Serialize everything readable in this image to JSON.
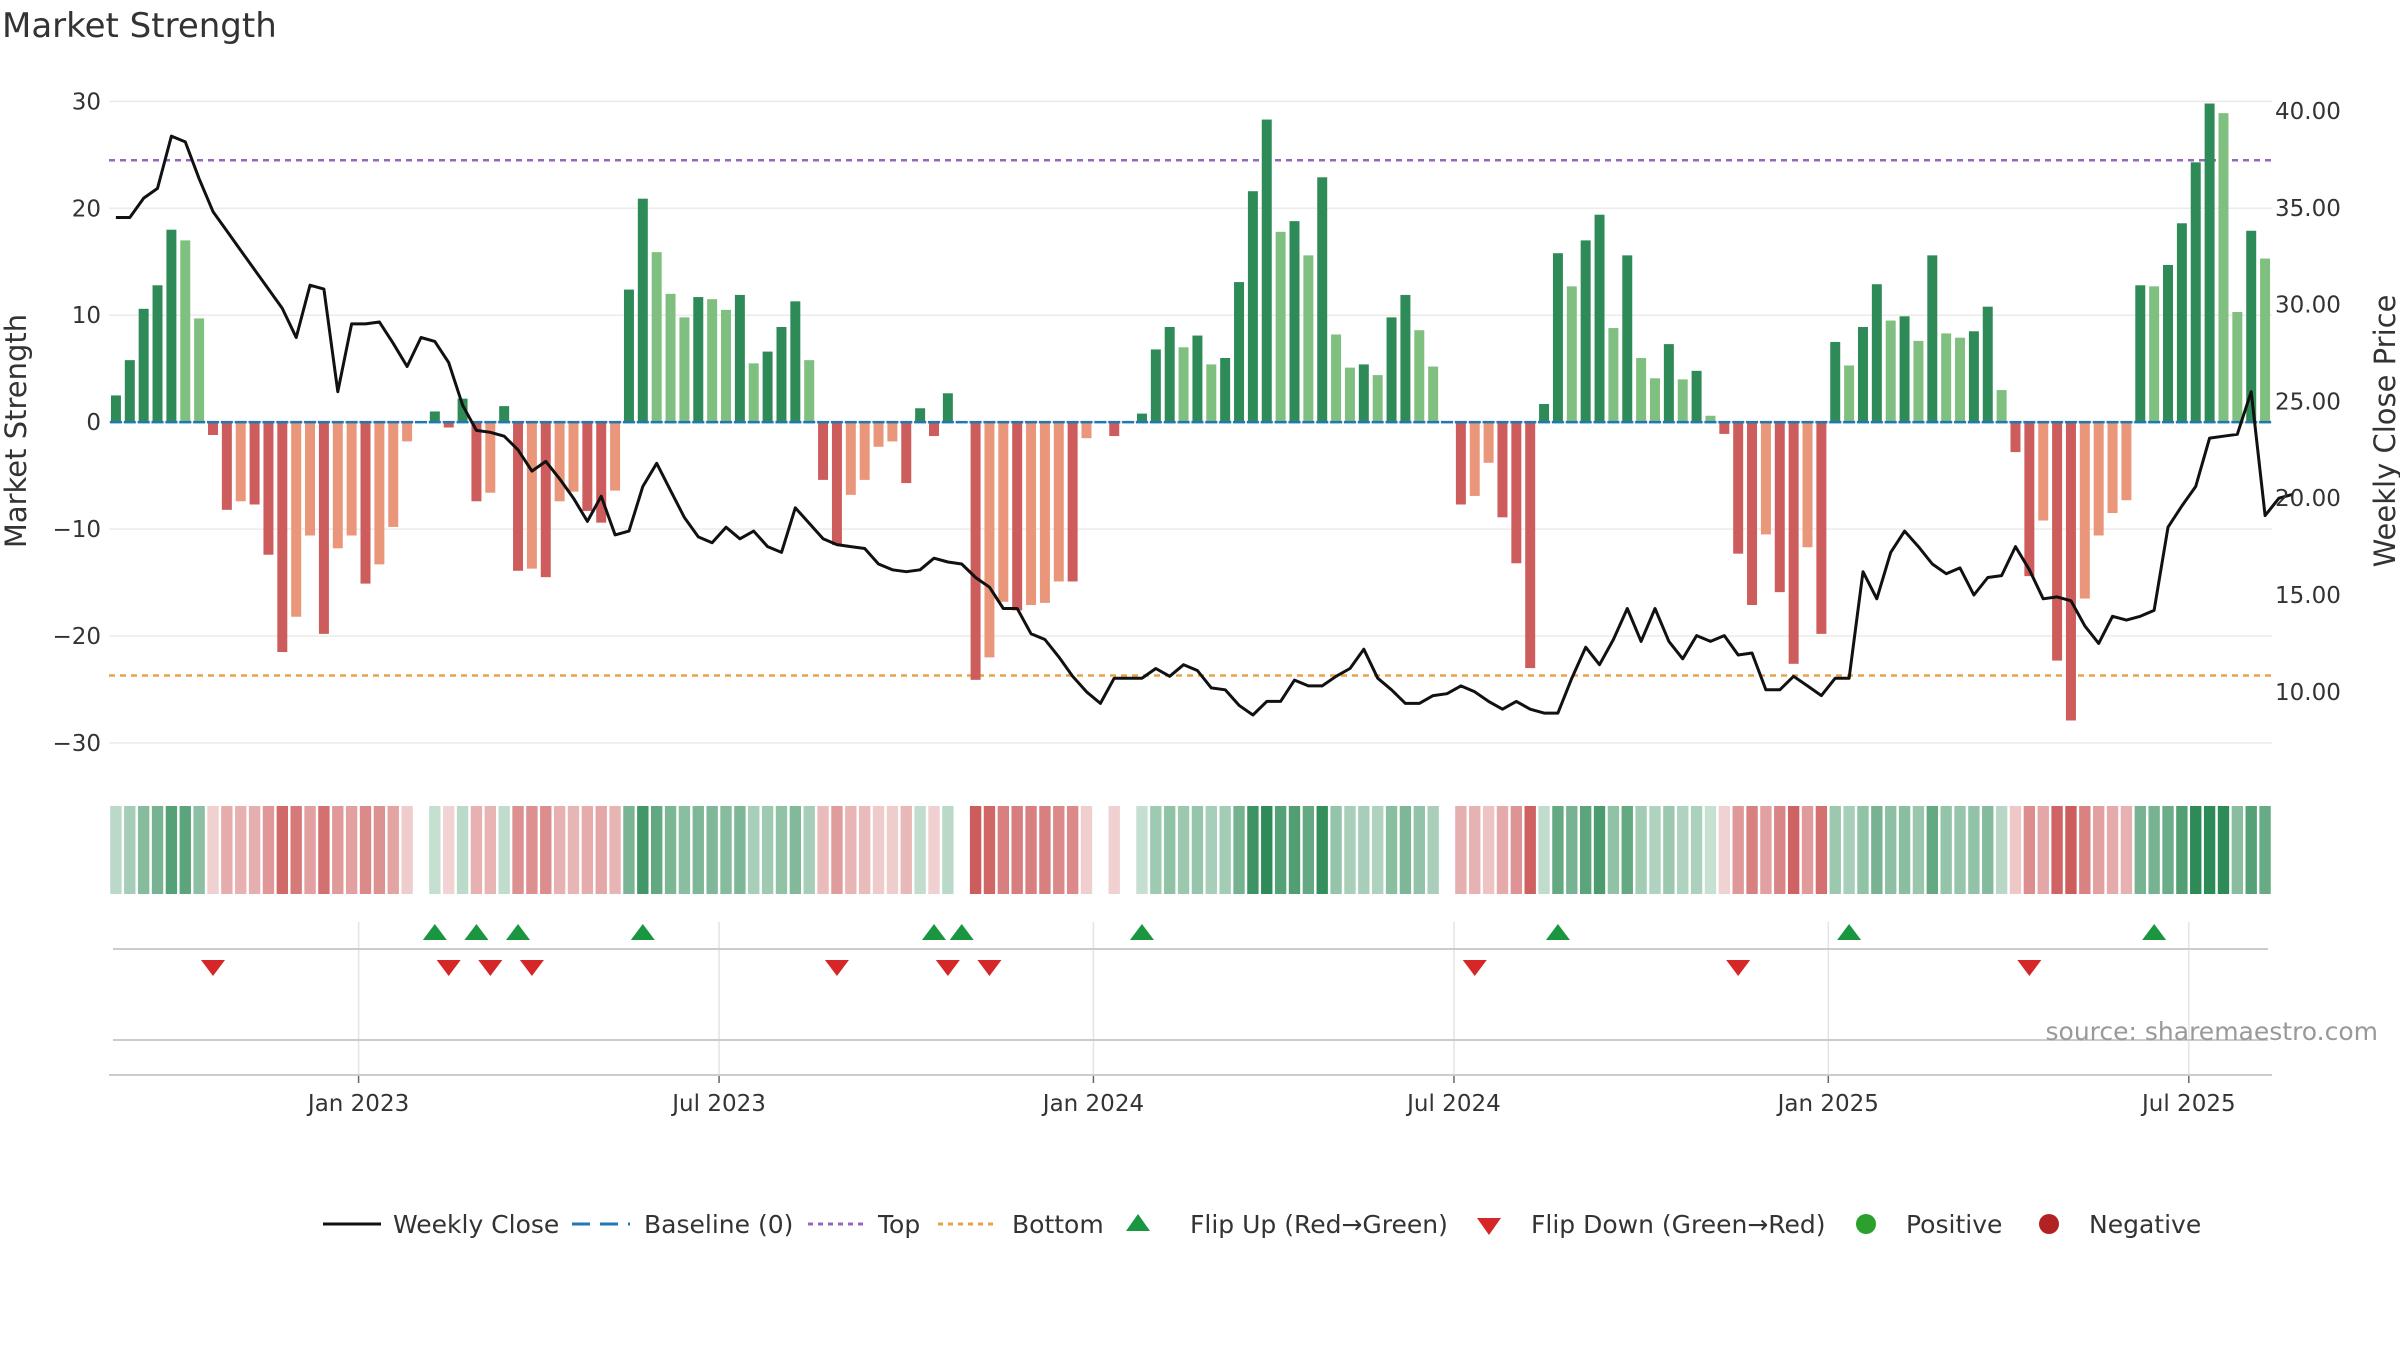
{
  "chart_data": {
    "type": "bar",
    "title": "Market Strength",
    "ylabel_left": "Market Strength",
    "ylabel_right": "Weekly Close Price",
    "source": "source: sharemaestro.com",
    "y_left_ticks": [
      30,
      20,
      10,
      0,
      -10,
      -20,
      -30
    ],
    "y_left_tick_labels": [
      "30",
      "20",
      "10",
      "0",
      "−10",
      "−20",
      "−30"
    ],
    "y_right_ticks": [
      "40.00",
      "35.00",
      "30.00",
      "25.00",
      "20.00",
      "15.00",
      "10.00"
    ],
    "ylim_left": [
      -33,
      32
    ],
    "ylim_right": [
      5.7,
      41.6
    ],
    "x_ticks": [
      "Jan 2023",
      "Jul 2023",
      "Jan 2024",
      "Jul 2024",
      "Jan 2025",
      "Jul 2025"
    ],
    "x_tick_weeks": [
      18,
      44,
      71,
      97,
      124,
      150
    ],
    "top_line": 24.5,
    "bottom_line": -23.7,
    "baseline": 0,
    "strength": [
      2.5,
      5.8,
      10.6,
      12.8,
      18,
      17,
      9.7,
      -1.2,
      -8.2,
      -7.4,
      -7.7,
      -12.4,
      -21.5,
      -18.2,
      -10.6,
      -19.8,
      -11.8,
      -10.6,
      -15.1,
      -13.3,
      -9.8,
      -1.8,
      0,
      1,
      -0.5,
      2.2,
      -7.4,
      -6.6,
      1.5,
      -13.9,
      -13.7,
      -14.5,
      -7.4,
      -6.5,
      -8.3,
      -9.4,
      -6.4,
      12.4,
      20.9,
      15.9,
      12,
      9.8,
      11.7,
      11.5,
      10.5,
      11.9,
      5.5,
      6.6,
      8.9,
      11.3,
      5.8,
      -5.4,
      -11.5,
      -6.8,
      -5.4,
      -2.3,
      -1.8,
      -5.7,
      1.3,
      -1.3,
      2.7,
      0,
      -24.1,
      -22,
      -16.8,
      -17.6,
      -17.1,
      -16.9,
      -14.9,
      -14.9,
      -1.5,
      0,
      -1.3,
      0,
      0.8,
      6.8,
      8.9,
      7,
      8.1,
      5.4,
      6,
      13.1,
      21.6,
      28.3,
      17.8,
      18.8,
      15.6,
      22.9,
      8.2,
      5.1,
      5.4,
      4.4,
      9.8,
      11.9,
      8.6,
      5.2,
      0,
      -7.7,
      -6.9,
      -3.8,
      -8.9,
      -13.2,
      -23,
      1.7,
      15.8,
      12.7,
      17,
      19.4,
      8.8,
      15.6,
      6,
      4.1,
      7.3,
      4,
      4.8,
      0.6,
      -1.1,
      -12.3,
      -17.1,
      -10.5,
      -15.9,
      -22.6,
      -11.7,
      -19.8,
      7.5,
      5.3,
      8.9,
      12.9,
      9.5,
      9.9,
      7.6,
      15.6,
      8.3,
      7.9,
      8.5,
      10.8,
      3,
      -2.8,
      -14.4,
      -9.2,
      -22.3,
      -27.9,
      -16.5,
      -10.6,
      -8.5,
      -7.3,
      12.8,
      12.7,
      14.7,
      18.6,
      24.3,
      29.8,
      28.9,
      10.3,
      17.9,
      15.3
    ],
    "weekly_close": [
      34.5,
      34.5,
      35.5,
      36,
      38.7,
      38.4,
      36.5,
      34.8,
      33.8,
      32.8,
      31.8,
      30.8,
      29.8,
      28.3,
      31,
      30.8,
      25.5,
      29,
      29,
      29.1,
      28,
      26.8,
      28.3,
      28.1,
      27,
      24.8,
      23.5,
      23.4,
      23.2,
      22.5,
      21.4,
      21.9,
      21,
      20,
      18.8,
      20.1,
      18.1,
      18.3,
      20.6,
      21.8,
      20.4,
      19,
      18,
      17.7,
      18.5,
      17.9,
      18.3,
      17.5,
      17.2,
      19.5,
      18.7,
      17.9,
      17.6,
      17.5,
      17.4,
      16.6,
      16.3,
      16.2,
      16.3,
      16.9,
      16.7,
      16.6,
      15.9,
      15.4,
      14.3,
      14.3,
      13,
      12.7,
      11.8,
      10.8,
      10,
      9.4,
      10.7,
      10.7,
      10.7,
      11.2,
      10.8,
      11.4,
      11.1,
      10.2,
      10.1,
      9.3,
      8.8,
      9.5,
      9.5,
      10.6,
      10.3,
      10.3,
      10.8,
      11.2,
      12.2,
      10.7,
      10.1,
      9.4,
      9.4,
      9.8,
      9.9,
      10.3,
      10,
      9.5,
      9.1,
      9.5,
      9.1,
      8.9,
      8.9,
      10.7,
      12.3,
      11.4,
      12.7,
      14.3,
      12.6,
      14.3,
      12.6,
      11.7,
      12.9,
      12.6,
      12.9,
      11.9,
      12,
      10.1,
      10.1,
      10.8,
      10.3,
      9.8,
      10.7,
      10.7,
      16.2,
      14.8,
      17.2,
      18.3,
      17.5,
      16.6,
      16.1,
      16.4,
      15,
      15.9,
      16,
      17.5,
      16.3,
      14.8,
      14.9,
      14.7,
      13.4,
      12.5,
      13.9,
      13.7,
      13.9,
      14.2,
      18.5,
      19.6,
      20.6,
      23.1,
      23.2,
      23.3,
      25.5,
      19.1,
      20,
      20.2
    ],
    "flip_up_weeks": [
      23,
      26,
      29,
      38,
      59,
      61,
      74,
      104,
      125,
      147
    ],
    "flip_down_weeks": [
      7,
      24,
      27,
      30,
      52,
      60,
      63,
      98,
      117,
      138
    ],
    "colors": {
      "strong_green": "#2e8b57",
      "light_green": "#7fbf7f",
      "strong_red": "#cd5c5c",
      "light_red": "#e9967a",
      "top_line": "#9467bd",
      "bottom_line": "#e8a34a",
      "baseline": "#1f77b4",
      "flip_up": "#1a9641",
      "flip_down": "#d62728",
      "positive": "#2ca02c",
      "negative": "#b22222",
      "close_line": "#111111"
    }
  },
  "legend": {
    "weekly_close": "Weekly Close",
    "baseline": "Baseline (0)",
    "top": "Top",
    "bottom": "Bottom",
    "flip_up": "Flip Up (Red→Green)",
    "flip_down": "Flip Down (Green→Red)",
    "positive": "Positive",
    "negative": "Negative"
  }
}
